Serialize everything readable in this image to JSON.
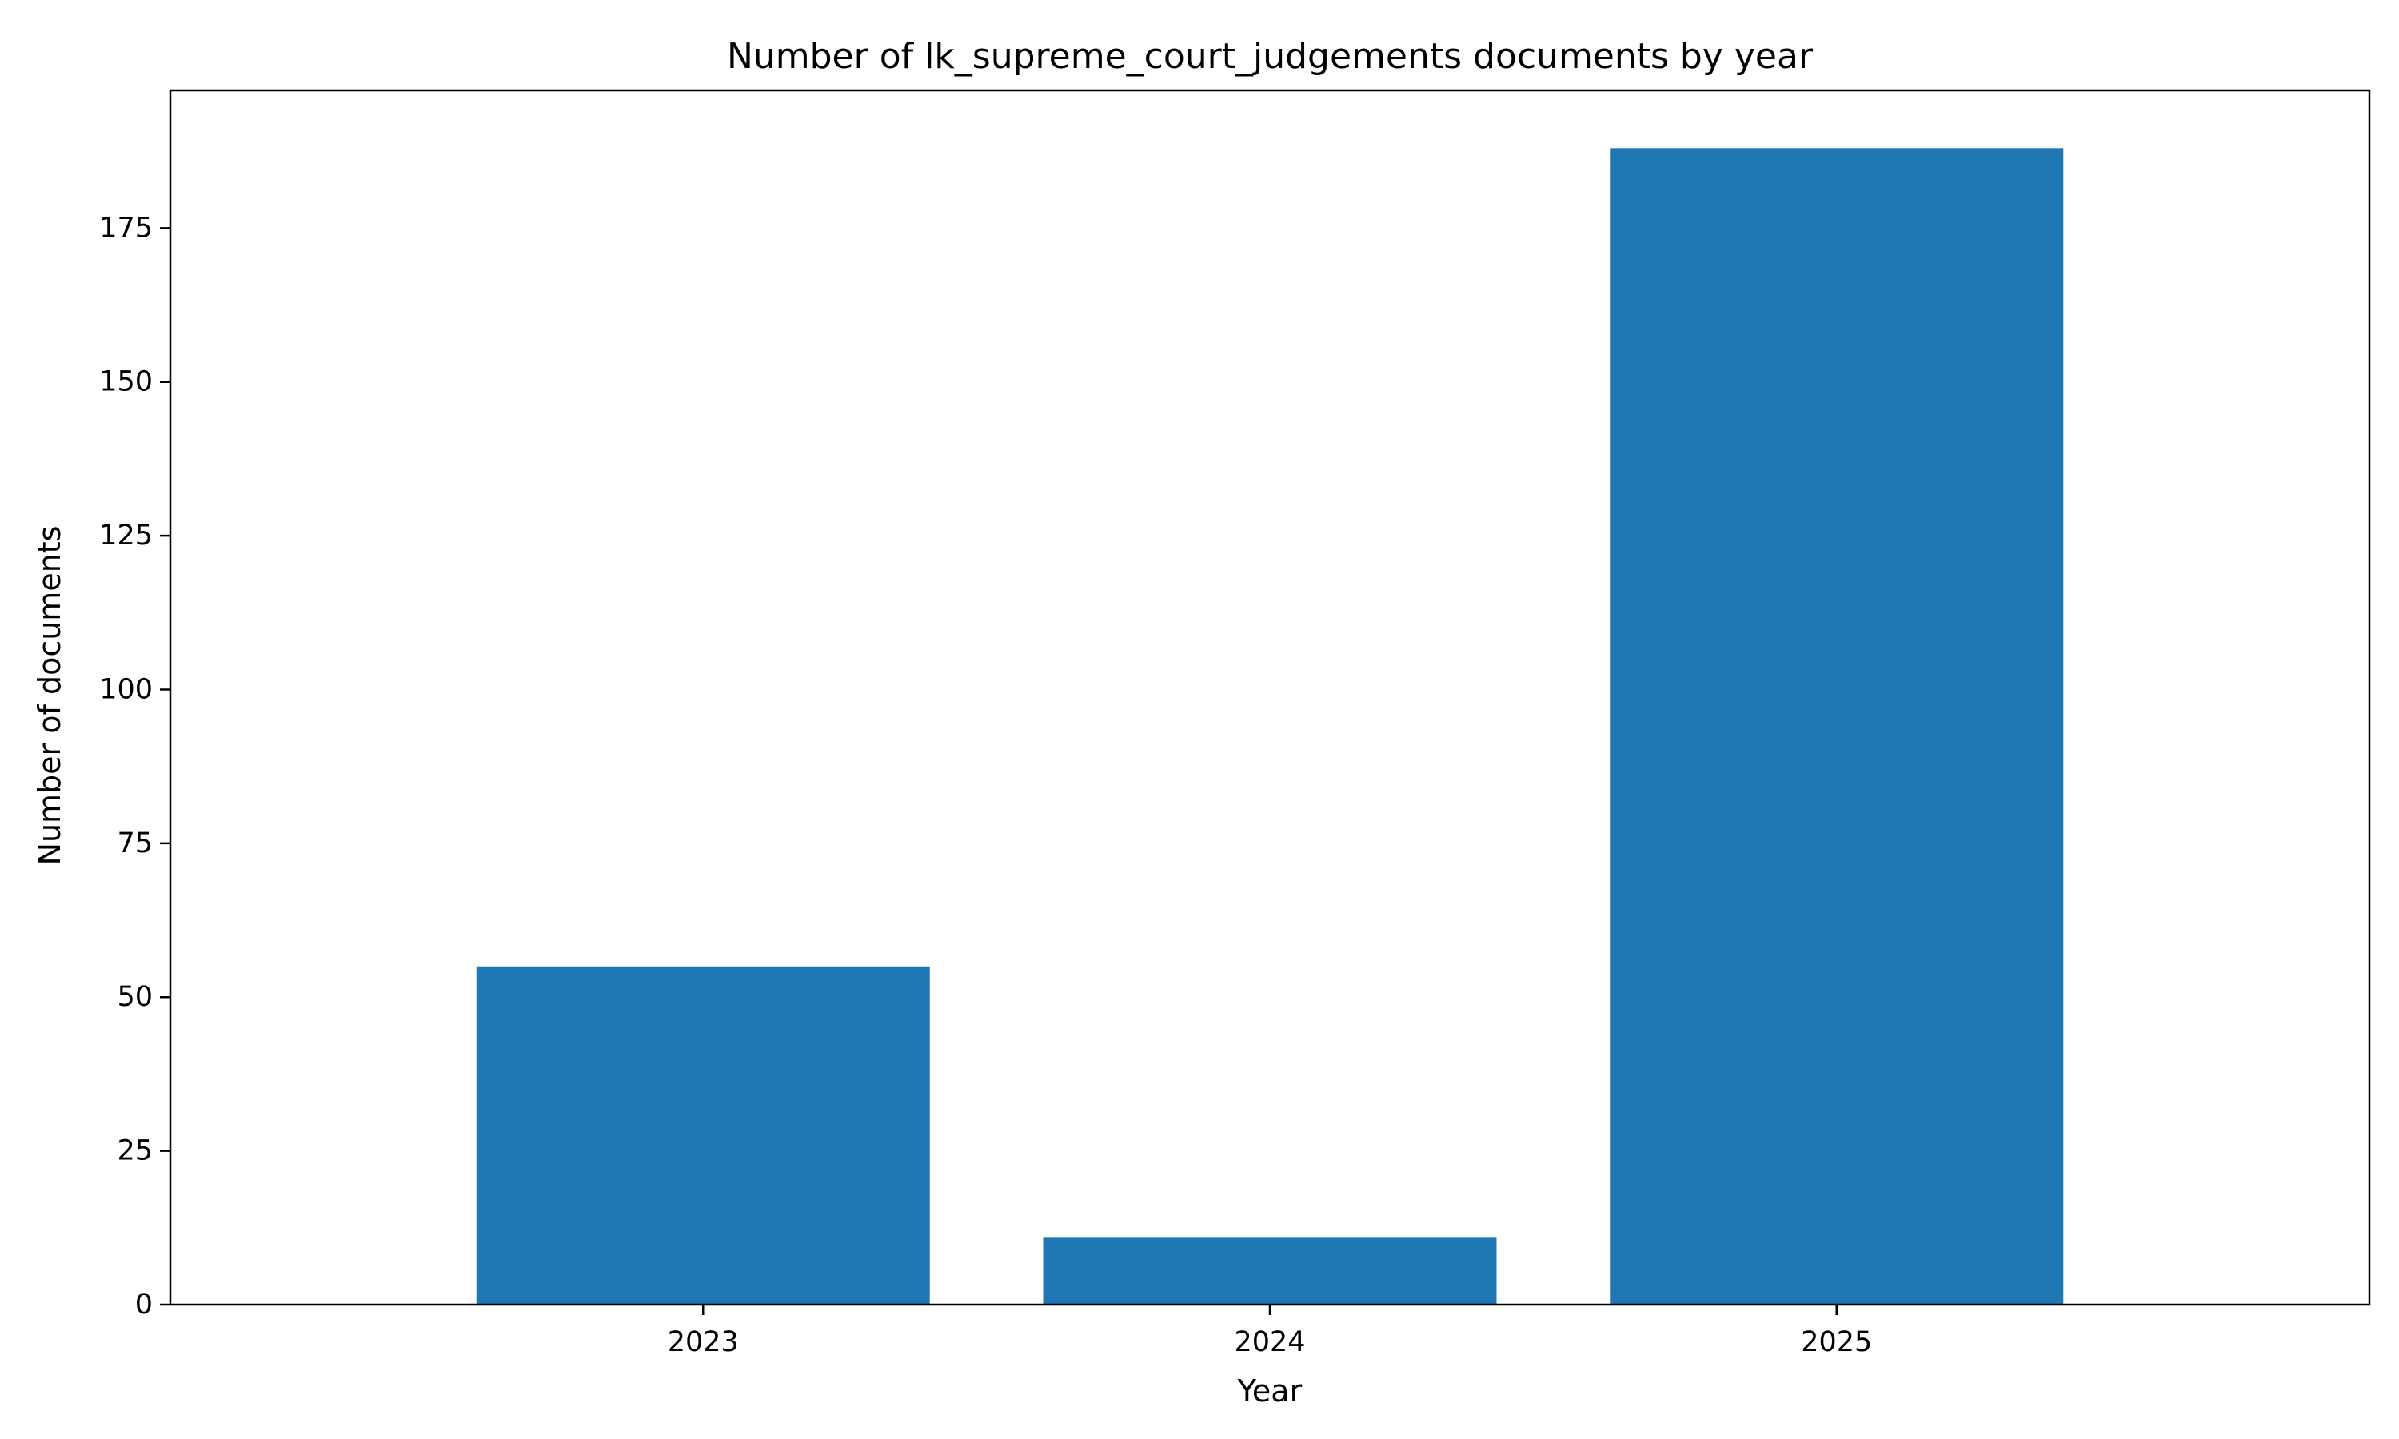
{
  "chart_data": {
    "type": "bar",
    "title": "Number of lk_supreme_court_judgements documents by year",
    "xlabel": "Year",
    "ylabel": "Number of documents",
    "categories": [
      "2023",
      "2024",
      "2025"
    ],
    "values": [
      55,
      11,
      188
    ],
    "ylim": [
      0,
      197.4
    ],
    "yticks": [
      0,
      25,
      50,
      75,
      100,
      125,
      150,
      175
    ],
    "grid": false,
    "legend": "none",
    "bar_color": "#1f77b4"
  }
}
